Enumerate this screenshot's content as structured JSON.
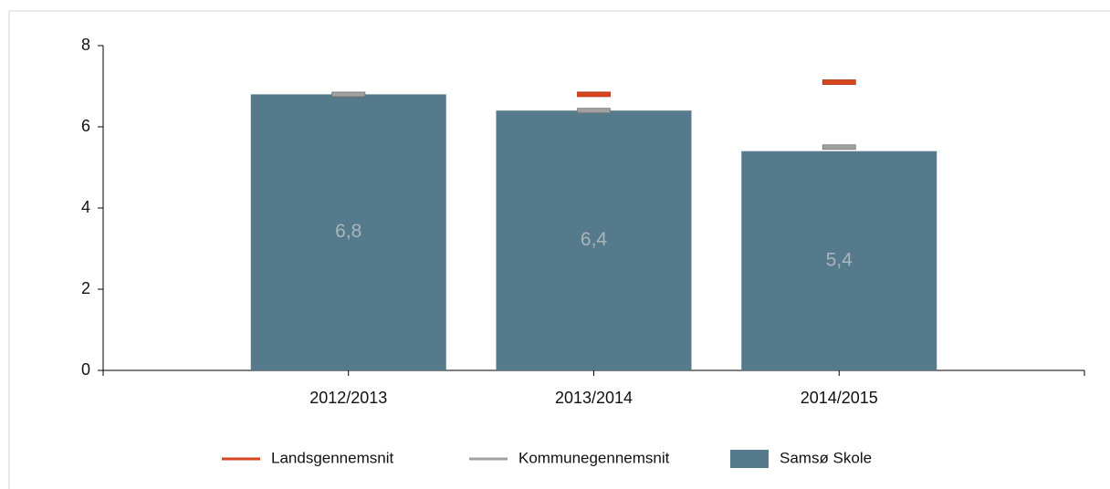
{
  "chart_data": {
    "type": "bar",
    "categories": [
      "2012/2013",
      "2013/2014",
      "2014/2015"
    ],
    "series": [
      {
        "name": "Landsgennemsnit",
        "color": "#d9461e",
        "style": "marker",
        "values": [
          6.8,
          6.8,
          7.1
        ]
      },
      {
        "name": "Kommunegennemsnit",
        "color": "#a0a0a0",
        "style": "marker",
        "values": [
          6.8,
          6.4,
          5.5
        ]
      },
      {
        "name": "Samsø Skole",
        "color": "#557a8b",
        "style": "bar",
        "values": [
          6.8,
          6.4,
          5.4
        ],
        "value_labels": [
          "6,8",
          "6,4",
          "5,4"
        ]
      }
    ],
    "ylim": [
      0,
      8
    ],
    "yticks": [
      0,
      2,
      4,
      6,
      8
    ],
    "legend": "bottom"
  }
}
